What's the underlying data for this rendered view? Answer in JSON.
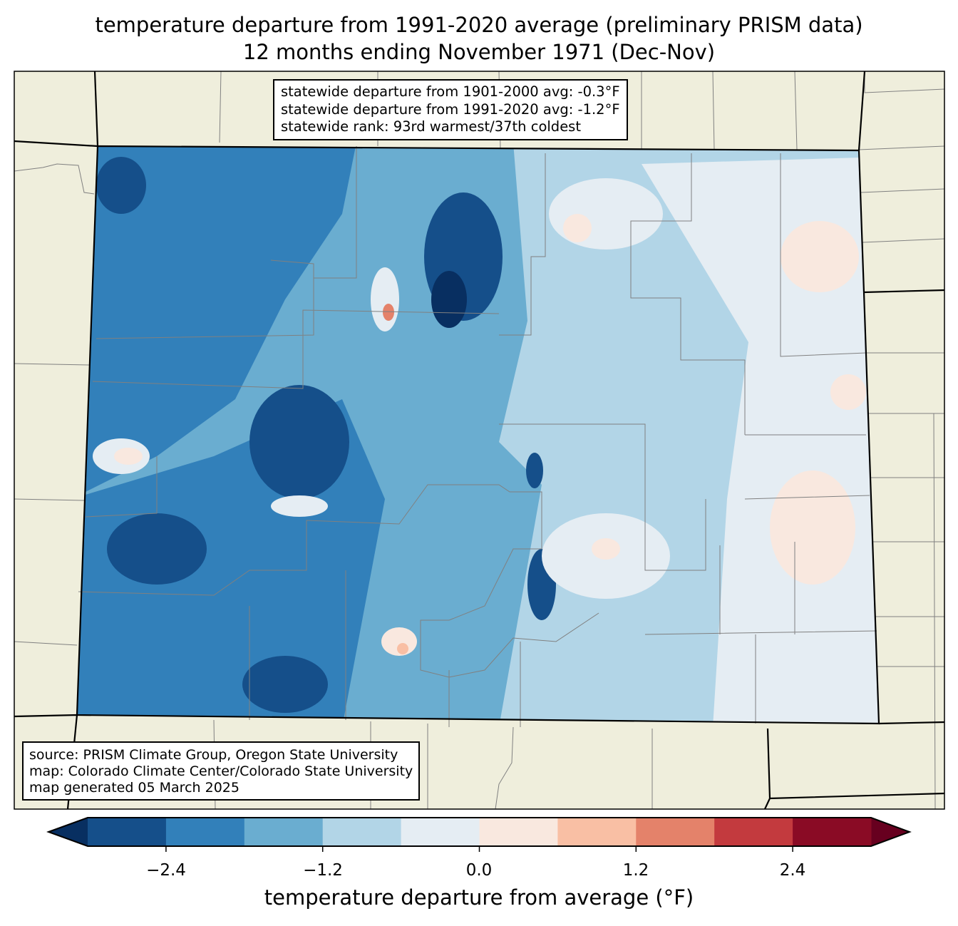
{
  "title": {
    "line1": "temperature departure from 1991-2020 average (preliminary PRISM data)",
    "line2": "12 months ending November 1971 (Dec-Nov)"
  },
  "stats": {
    "line1": "statewide departure from 1901-2000 avg: -0.3°F",
    "line2": "statewide departure from 1991-2020 avg: -1.2°F",
    "line3": "statewide rank: 93rd warmest/37th coldest"
  },
  "source": {
    "line1": "source: PRISM Climate Group, Oregon State University",
    "line2": "map: Colorado Climate Center/Colorado State University",
    "line3": "map generated 05 March 2025"
  },
  "colorbar": {
    "label": "temperature departure from average (°F)",
    "ticks": [
      "−2.4",
      "−1.2",
      "0.0",
      "1.2",
      "2.4"
    ],
    "levels": [
      -3.0,
      -2.4,
      -1.8,
      -1.2,
      -0.6,
      0.0,
      0.6,
      1.2,
      1.8,
      2.4,
      3.0
    ],
    "colors": [
      "#154f8a",
      "#3280ba",
      "#6aadd0",
      "#b2d5e7",
      "#e5edf3",
      "#f9e8df",
      "#f9bfa4",
      "#e4826a",
      "#c33a3e",
      "#8a0b25"
    ],
    "extend_low_color": "#082f61",
    "extend_high_color": "#67001f"
  },
  "map_colors": {
    "land": "#efeedc",
    "county_lines": "#808080"
  }
}
